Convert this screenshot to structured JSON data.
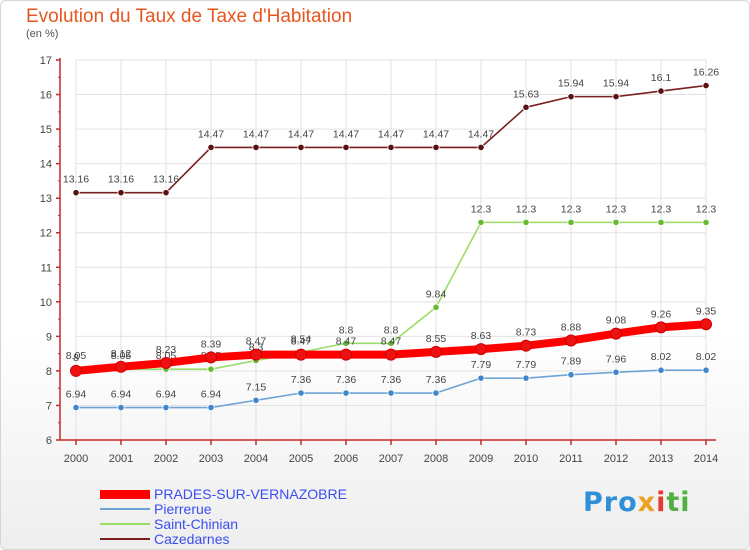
{
  "title": "Evolution du Taux de Taxe d'Habitation",
  "subtitle": "(en %)",
  "brand": {
    "p1": "Pro",
    "p2": "x",
    "p3": "i",
    "p4": "ti"
  },
  "colors": {
    "axis": "#c32a2a",
    "grid": "#e2e2e2",
    "label": "#444444",
    "legend_text": "#3a4ef0"
  },
  "chart_data": {
    "type": "line",
    "title": "Evolution du Taux de Taxe d'Habitation",
    "ylabel": "(en %)",
    "xlabel": "",
    "ylim": [
      6,
      17
    ],
    "yticks": [
      6,
      7,
      8,
      9,
      10,
      11,
      12,
      13,
      14,
      15,
      16,
      17
    ],
    "x": [
      "2000",
      "2001",
      "2002",
      "2003",
      "2004",
      "2005",
      "2006",
      "2007",
      "2008",
      "2009",
      "2010",
      "2011",
      "2012",
      "2013",
      "2014"
    ],
    "legend_position": "bottom-left",
    "series": [
      {
        "name": "Cazedarnes",
        "color": "#7a1f1f",
        "marker": "#5a1010",
        "values": [
          13.16,
          13.16,
          13.16,
          14.47,
          14.47,
          14.47,
          14.47,
          14.47,
          14.47,
          14.47,
          15.63,
          15.94,
          15.94,
          16.1,
          16.26
        ],
        "labels": [
          "13.16",
          "13.16",
          "13.16",
          "14.47",
          "14.47",
          "14.47",
          "14.47",
          "14.47",
          "14.47",
          "14.47",
          "15.63",
          "15.94",
          "15.94",
          "16.1",
          "16.26"
        ]
      },
      {
        "name": "Saint-Chinian",
        "color": "#99dd66",
        "marker": "#66bb33",
        "values": [
          8.05,
          8.05,
          8.05,
          8.05,
          8.3,
          8.54,
          8.8,
          8.8,
          9.84,
          12.3,
          12.3,
          12.3,
          12.3,
          12.3,
          12.3
        ],
        "labels": [
          "8.05",
          "8.05",
          "8.05",
          "8.05",
          "8.3",
          "8.54",
          "8.8",
          "8.8",
          "9.84",
          "12.3",
          "12.3",
          "12.3",
          "12.3",
          "12.3",
          "12.3"
        ]
      },
      {
        "name": "Pierrerue",
        "color": "#6fa3d6",
        "marker": "#3f86cc",
        "values": [
          6.94,
          6.94,
          6.94,
          6.94,
          7.15,
          7.36,
          7.36,
          7.36,
          7.36,
          7.79,
          7.79,
          7.89,
          7.96,
          8.02,
          8.02
        ],
        "labels": [
          "6.94",
          "6.94",
          "6.94",
          "6.94",
          "7.15",
          "7.36",
          "7.36",
          "7.36",
          "7.36",
          "7.79",
          "7.79",
          "7.89",
          "7.96",
          "8.02",
          "8.02"
        ]
      },
      {
        "name": "PRADES-SUR-VERNAZOBRE",
        "color": "#ff0000",
        "marker": "#ee1111",
        "values": [
          8.0,
          8.12,
          8.23,
          8.39,
          8.47,
          8.47,
          8.47,
          8.47,
          8.55,
          8.63,
          8.73,
          8.88,
          9.08,
          9.26,
          9.35
        ],
        "labels": [
          "8",
          "8.12",
          "8.23",
          "8.39",
          "8.47",
          "8.47",
          "8.47",
          "8.47",
          "8.55",
          "8.63",
          "8.73",
          "8.88",
          "9.08",
          "9.26",
          "9.35"
        ]
      }
    ]
  },
  "legend": [
    {
      "label": "PRADES-SUR-VERNAZOBRE",
      "color": "#ff0000",
      "weight": 9
    },
    {
      "label": "Pierrerue",
      "color": "#6fa3d6",
      "weight": 2
    },
    {
      "label": "Saint-Chinian",
      "color": "#99dd66",
      "weight": 2
    },
    {
      "label": "Cazedarnes",
      "color": "#7a1f1f",
      "weight": 2
    }
  ]
}
